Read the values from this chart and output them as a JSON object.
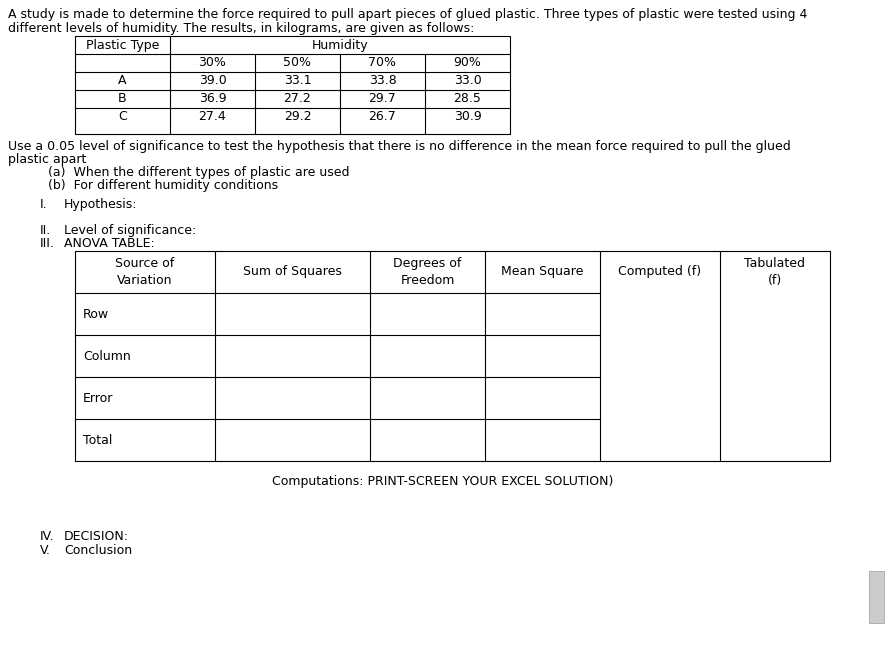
{
  "intro_text_line1": "A study is made to determine the force required to pull apart pieces of glued plastic. Three types of plastic were tested using 4",
  "intro_text_line2": "different levels of humidity. The results, in kilograms, are given as follows:",
  "plastic_types": [
    "A",
    "B",
    "C"
  ],
  "humidity_levels": [
    "30%",
    "50%",
    "70%",
    "90%"
  ],
  "data": [
    [
      39.0,
      33.1,
      33.8,
      33.0
    ],
    [
      36.9,
      27.2,
      29.7,
      28.5
    ],
    [
      27.4,
      29.2,
      26.7,
      30.9
    ]
  ],
  "sig_line1": "Use a 0.05 level of significance to test the hypothesis that there is no difference in the mean force required to pull the glued",
  "sig_line2": "plastic apart",
  "sub_a": "(a)  When the different types of plastic are used",
  "sub_b": "(b)  For different humidity conditions",
  "hypothesis_label": "I.",
  "hypothesis_text": "Hypothesis:",
  "significance_label": "II.",
  "level_text": "Level of significance:",
  "anova_label": "III.",
  "anova_text": "ANOVA TABLE:",
  "anova_headers": [
    "Source of\nVariation",
    "Sum of Squares",
    "Degrees of\nFreedom",
    "Mean Square",
    "Computed (f)",
    "Tabulated\n(f)"
  ],
  "anova_rows": [
    "Row",
    "Column",
    "Error",
    "Total"
  ],
  "computations_text": "Computations: PRINT-SCREEN YOUR EXCEL SOLUTION)",
  "decision_label": "IV.",
  "decision_text": "DECISION:",
  "conclusion_label": "V.",
  "conclusion_text": "Conclusion",
  "bg_color": "#ffffff",
  "text_color": "#000000",
  "font_size": 9.0
}
